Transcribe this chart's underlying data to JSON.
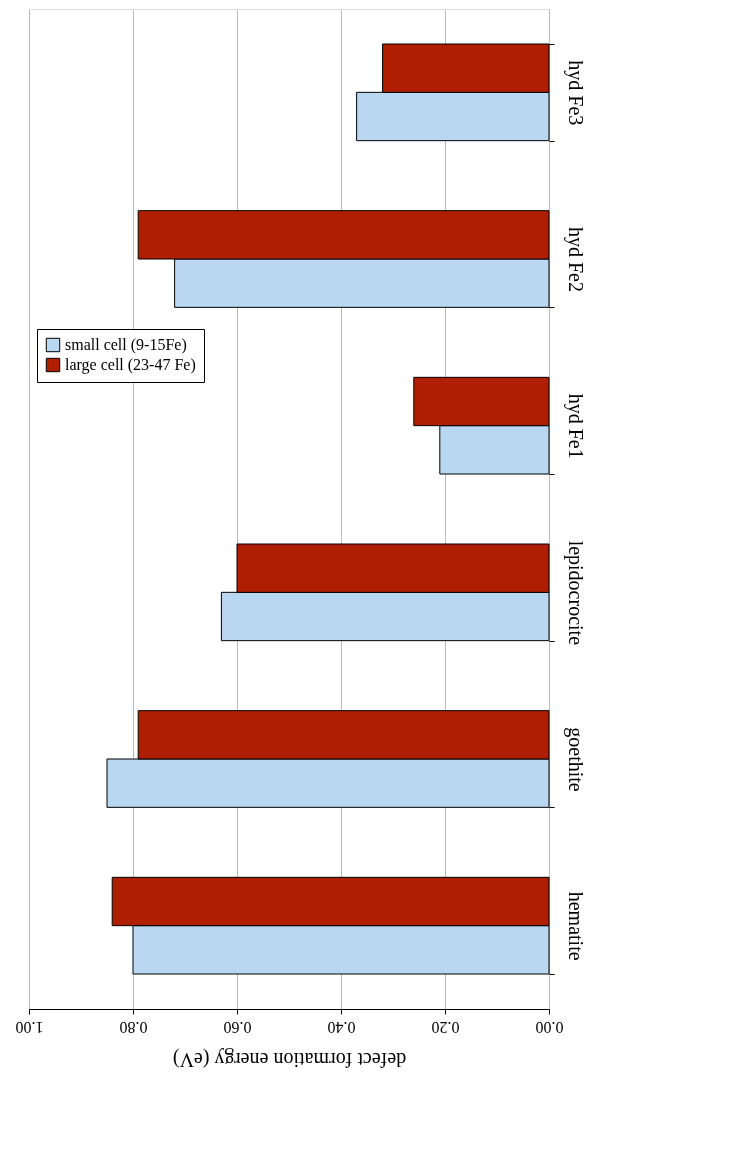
{
  "chart_data": {
    "type": "bar",
    "orientation": "horizontal",
    "xlabel": "defect formation energy (eV)",
    "categories": [
      "hyd Fe3",
      "hyd Fe2",
      "hyd Fe1",
      "lepidocrocite",
      "goethite",
      "hematite"
    ],
    "series": [
      {
        "name": "small cell (9-15Fe)",
        "color": "#b9d7f1",
        "values": [
          0.37,
          0.72,
          0.21,
          0.63,
          0.85,
          0.8
        ]
      },
      {
        "name": "large cell (23-47 Fe)",
        "color": "#b01e00",
        "values": [
          0.32,
          0.79,
          0.26,
          0.6,
          0.79,
          0.84
        ]
      }
    ],
    "xlim": [
      1.0,
      0.0
    ],
    "xticks": [
      {
        "value": 1.0,
        "label": "1.00"
      },
      {
        "value": 0.8,
        "label": "0.80"
      },
      {
        "value": 0.6,
        "label": "0.60"
      },
      {
        "value": 0.4,
        "label": "0.40"
      },
      {
        "value": 0.2,
        "label": "0.20"
      },
      {
        "value": 0.0,
        "label": "0.00"
      }
    ],
    "grid": "x",
    "legend": "left"
  }
}
